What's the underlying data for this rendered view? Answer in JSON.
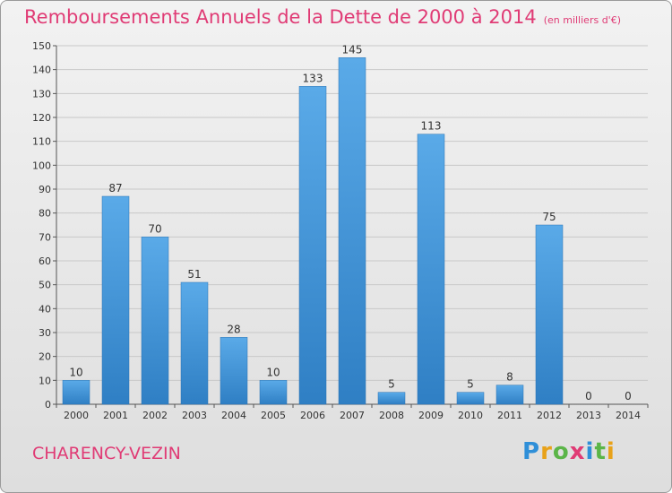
{
  "header": {
    "title": "Remboursements Annuels de la Dette de 2000 à 2014",
    "unit": "(en milliers d'€)"
  },
  "footer": {
    "commune": "CHARENCY-VEZIN",
    "brand": [
      "P",
      "r",
      "o",
      "x",
      "i",
      "t",
      "i"
    ]
  },
  "colors": {
    "bar": "#3d8fd6",
    "bar_light": "#5aaae8",
    "title": "#e03b75",
    "grid": "#c8c8c8"
  },
  "chart_data": {
    "type": "bar",
    "title": "Remboursements Annuels de la Dette de 2000 à 2014",
    "xlabel": "",
    "ylabel": "",
    "categories": [
      "2000",
      "2001",
      "2002",
      "2003",
      "2004",
      "2005",
      "2006",
      "2007",
      "2008",
      "2009",
      "2010",
      "2011",
      "2012",
      "2013",
      "2014"
    ],
    "values": [
      10,
      87,
      70,
      51,
      28,
      10,
      133,
      145,
      5,
      113,
      5,
      8,
      75,
      0,
      0
    ],
    "ylim": [
      0,
      150
    ],
    "yticks": [
      0,
      10,
      20,
      30,
      40,
      50,
      60,
      70,
      80,
      90,
      100,
      110,
      120,
      130,
      140,
      150
    ],
    "grid": true,
    "legend": "none"
  }
}
